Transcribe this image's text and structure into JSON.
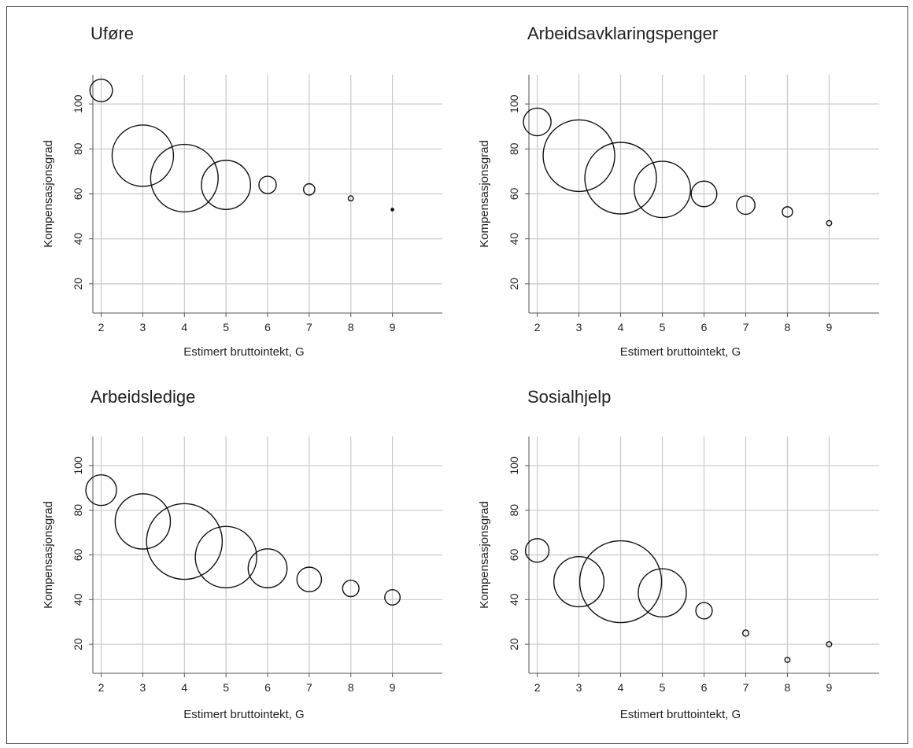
{
  "colors": {
    "grid": "#c8c8c8",
    "axis": "#555555",
    "marker": "#111111",
    "text": "#222222"
  },
  "chart_data": [
    {
      "type": "scatter",
      "title": "Uføre",
      "xlabel": "Estimert bruttointekt, G",
      "ylabel": "Kompensasjonsgrad",
      "xlim": [
        1.8,
        10.2
      ],
      "ylim": [
        7,
        113
      ],
      "xticks": [
        2,
        3,
        4,
        5,
        6,
        7,
        8,
        9
      ],
      "yticks": [
        20,
        40,
        60,
        80,
        100
      ],
      "grid": true,
      "marker": "hollow-circle",
      "points": [
        {
          "x": 2,
          "y": 106,
          "r": 2.2
        },
        {
          "x": 3,
          "y": 77,
          "r": 6.0
        },
        {
          "x": 4,
          "y": 67,
          "r": 6.6
        },
        {
          "x": 5,
          "y": 64,
          "r": 4.8
        },
        {
          "x": 6,
          "y": 64,
          "r": 1.7
        },
        {
          "x": 7,
          "y": 62,
          "r": 1.1
        },
        {
          "x": 8,
          "y": 58,
          "r": 0.5
        },
        {
          "x": 9,
          "y": 53,
          "r": 0.3
        }
      ]
    },
    {
      "type": "scatter",
      "title": "Arbeidsavklaringspenger",
      "xlabel": "Estimert bruttointekt, G",
      "ylabel": "Kompensasjonsgrad",
      "xlim": [
        1.8,
        10.2
      ],
      "ylim": [
        7,
        113
      ],
      "xticks": [
        2,
        3,
        4,
        5,
        6,
        7,
        8,
        9
      ],
      "yticks": [
        20,
        40,
        60,
        80,
        100
      ],
      "grid": true,
      "marker": "hollow-circle",
      "points": [
        {
          "x": 2,
          "y": 92,
          "r": 2.7
        },
        {
          "x": 3,
          "y": 77,
          "r": 7.0
        },
        {
          "x": 4,
          "y": 67,
          "r": 7.0
        },
        {
          "x": 5,
          "y": 62,
          "r": 5.5
        },
        {
          "x": 6,
          "y": 60,
          "r": 2.5
        },
        {
          "x": 7,
          "y": 55,
          "r": 1.8
        },
        {
          "x": 8,
          "y": 52,
          "r": 1.0
        },
        {
          "x": 9,
          "y": 47,
          "r": 0.5
        }
      ]
    },
    {
      "type": "scatter",
      "title": "Arbeidsledige",
      "xlabel": "Estimert bruttointekt, G",
      "ylabel": "Kompensasjonsgrad",
      "xlim": [
        1.8,
        10.2
      ],
      "ylim": [
        7,
        113
      ],
      "xticks": [
        2,
        3,
        4,
        5,
        6,
        7,
        8,
        9
      ],
      "yticks": [
        20,
        40,
        60,
        80,
        100
      ],
      "grid": true,
      "marker": "hollow-circle",
      "points": [
        {
          "x": 2,
          "y": 89,
          "r": 3.0
        },
        {
          "x": 3,
          "y": 75,
          "r": 5.4
        },
        {
          "x": 4,
          "y": 66,
          "r": 7.4
        },
        {
          "x": 5,
          "y": 59,
          "r": 6.0
        },
        {
          "x": 6,
          "y": 54,
          "r": 3.8
        },
        {
          "x": 7,
          "y": 49,
          "r": 2.4
        },
        {
          "x": 8,
          "y": 45,
          "r": 1.6
        },
        {
          "x": 9,
          "y": 41,
          "r": 1.5
        }
      ]
    },
    {
      "type": "scatter",
      "title": "Sosialhjelp",
      "xlabel": "Estimert bruttointekt, G",
      "ylabel": "Kompensasjonsgrad",
      "xlim": [
        1.8,
        10.2
      ],
      "ylim": [
        7,
        113
      ],
      "xticks": [
        2,
        3,
        4,
        5,
        6,
        7,
        8,
        9
      ],
      "yticks": [
        20,
        40,
        60,
        80,
        100
      ],
      "grid": true,
      "marker": "hollow-circle",
      "points": [
        {
          "x": 2,
          "y": 62,
          "r": 2.3
        },
        {
          "x": 3,
          "y": 48,
          "r": 4.9
        },
        {
          "x": 4,
          "y": 48,
          "r": 8.0
        },
        {
          "x": 5,
          "y": 43,
          "r": 4.7
        },
        {
          "x": 6,
          "y": 35,
          "r": 1.6
        },
        {
          "x": 7,
          "y": 25,
          "r": 0.6
        },
        {
          "x": 8,
          "y": 13,
          "r": 0.5
        },
        {
          "x": 9,
          "y": 20,
          "r": 0.5
        }
      ]
    }
  ]
}
